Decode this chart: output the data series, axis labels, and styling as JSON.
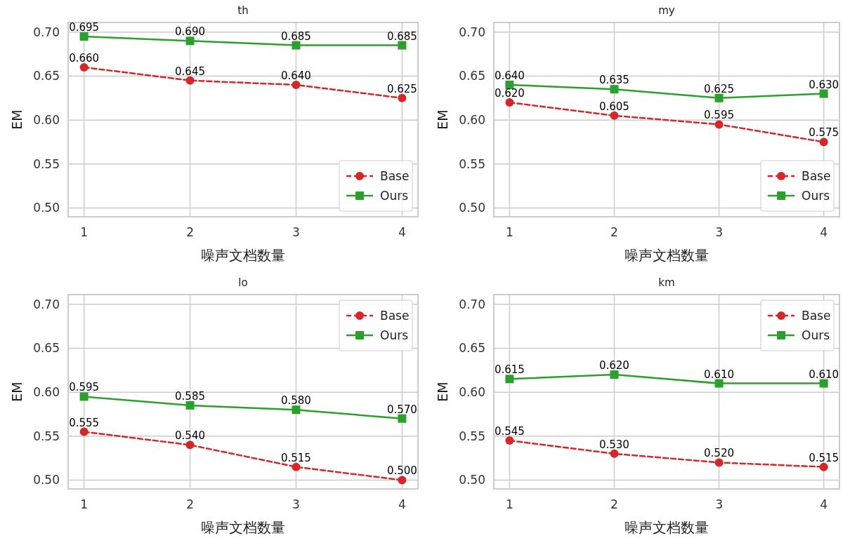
{
  "chart_data": [
    {
      "type": "line",
      "title": "th",
      "xlabel": "噪声文档数量",
      "ylabel": "EM",
      "x": [
        1,
        2,
        3,
        4
      ],
      "xlim": [
        0.85,
        4.15
      ],
      "xticks": [
        1,
        2,
        3,
        4
      ],
      "ylim": [
        0.49,
        0.711
      ],
      "yticks": [
        {
          "value": 0.5,
          "label": "0.50"
        },
        {
          "value": 0.55,
          "label": "0.55"
        },
        {
          "value": 0.6,
          "label": "0.60"
        },
        {
          "value": 0.65,
          "label": "0.65"
        },
        {
          "value": 0.7,
          "label": "0.70"
        }
      ],
      "grid": true,
      "legend": "bottom right",
      "series": [
        {
          "name": "Base",
          "color": "#d62728",
          "marker": "circle",
          "line_style": "dashed",
          "values": [
            0.66,
            0.645,
            0.64,
            0.625
          ],
          "value_labels": [
            "0.660",
            "0.645",
            "0.640",
            "0.625"
          ]
        },
        {
          "name": "Ours",
          "color": "#2ca02c",
          "marker": "square",
          "line_style": "solid",
          "values": [
            0.695,
            0.69,
            0.685,
            0.685
          ],
          "value_labels": [
            "0.695",
            "0.690",
            "0.685",
            "0.685"
          ]
        }
      ]
    },
    {
      "type": "line",
      "title": "my",
      "xlabel": "噪声文档数量",
      "ylabel": "EM",
      "x": [
        1,
        2,
        3,
        4
      ],
      "xlim": [
        0.85,
        4.15
      ],
      "xticks": [
        1,
        2,
        3,
        4
      ],
      "ylim": [
        0.49,
        0.711
      ],
      "yticks": [
        {
          "value": 0.5,
          "label": "0.50"
        },
        {
          "value": 0.55,
          "label": "0.55"
        },
        {
          "value": 0.6,
          "label": "0.60"
        },
        {
          "value": 0.65,
          "label": "0.65"
        },
        {
          "value": 0.7,
          "label": "0.70"
        }
      ],
      "grid": true,
      "legend": "bottom right",
      "series": [
        {
          "name": "Base",
          "color": "#d62728",
          "marker": "circle",
          "line_style": "dashed",
          "values": [
            0.62,
            0.605,
            0.595,
            0.575
          ],
          "value_labels": [
            "0.620",
            "0.605",
            "0.595",
            "0.575"
          ]
        },
        {
          "name": "Ours",
          "color": "#2ca02c",
          "marker": "square",
          "line_style": "solid",
          "values": [
            0.64,
            0.635,
            0.625,
            0.63
          ],
          "value_labels": [
            "0.640",
            "0.635",
            "0.625",
            "0.630"
          ]
        }
      ]
    },
    {
      "type": "line",
      "title": "lo",
      "xlabel": "噪声文档数量",
      "ylabel": "EM",
      "x": [
        1,
        2,
        3,
        4
      ],
      "xlim": [
        0.85,
        4.15
      ],
      "xticks": [
        1,
        2,
        3,
        4
      ],
      "ylim": [
        0.49,
        0.711
      ],
      "yticks": [
        {
          "value": 0.5,
          "label": "0.50"
        },
        {
          "value": 0.55,
          "label": "0.55"
        },
        {
          "value": 0.6,
          "label": "0.60"
        },
        {
          "value": 0.65,
          "label": "0.65"
        },
        {
          "value": 0.7,
          "label": "0.70"
        }
      ],
      "grid": true,
      "legend": "top right",
      "series": [
        {
          "name": "Base",
          "color": "#d62728",
          "marker": "circle",
          "line_style": "dashed",
          "values": [
            0.555,
            0.54,
            0.515,
            0.5
          ],
          "value_labels": [
            "0.555",
            "0.540",
            "0.515",
            "0.500"
          ]
        },
        {
          "name": "Ours",
          "color": "#2ca02c",
          "marker": "square",
          "line_style": "solid",
          "values": [
            0.595,
            0.585,
            0.58,
            0.57
          ],
          "value_labels": [
            "0.595",
            "0.585",
            "0.580",
            "0.570"
          ]
        }
      ]
    },
    {
      "type": "line",
      "title": "km",
      "xlabel": "噪声文档数量",
      "ylabel": "EM",
      "x": [
        1,
        2,
        3,
        4
      ],
      "xlim": [
        0.85,
        4.15
      ],
      "xticks": [
        1,
        2,
        3,
        4
      ],
      "ylim": [
        0.49,
        0.711
      ],
      "yticks": [
        {
          "value": 0.5,
          "label": "0.50"
        },
        {
          "value": 0.55,
          "label": "0.55"
        },
        {
          "value": 0.6,
          "label": "0.60"
        },
        {
          "value": 0.65,
          "label": "0.65"
        },
        {
          "value": 0.7,
          "label": "0.70"
        }
      ],
      "grid": true,
      "legend": "top right",
      "series": [
        {
          "name": "Base",
          "color": "#d62728",
          "marker": "circle",
          "line_style": "dashed",
          "values": [
            0.545,
            0.53,
            0.52,
            0.515
          ],
          "value_labels": [
            "0.545",
            "0.530",
            "0.520",
            "0.515"
          ]
        },
        {
          "name": "Ours",
          "color": "#2ca02c",
          "marker": "square",
          "line_style": "solid",
          "values": [
            0.615,
            0.62,
            0.61,
            0.61
          ],
          "value_labels": [
            "0.615",
            "0.620",
            "0.610",
            "0.610"
          ]
        }
      ]
    }
  ]
}
